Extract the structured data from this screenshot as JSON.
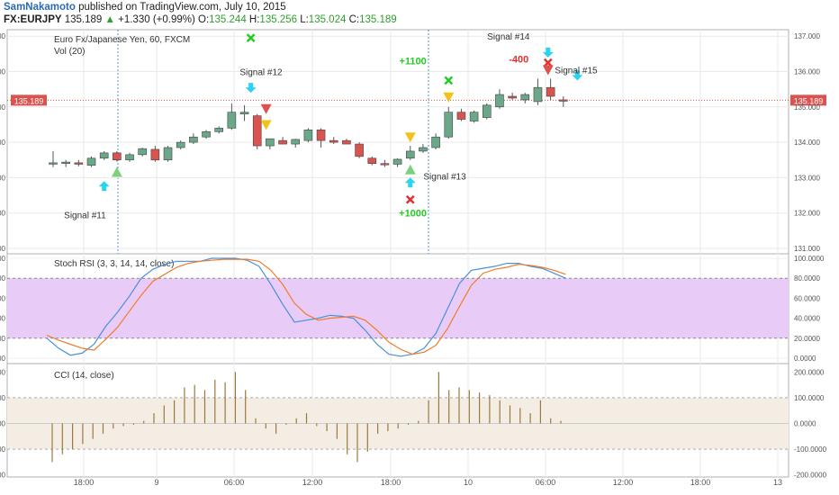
{
  "header": {
    "author": "SamNakamoto",
    "published_text": "published on TradingView.com, July 10, 2015",
    "symbol": "FX:EURJPY",
    "last": "135.189",
    "change_arrow": "▲",
    "change": "+1.330 (+0.99%)",
    "o_label": "O:",
    "o_val": "135.244",
    "h_label": "H:",
    "h_val": "135.256",
    "l_label": "L:",
    "l_val": "135.024",
    "c_label": "C:",
    "c_val": "135.189"
  },
  "colors": {
    "up": "#6aa889",
    "down": "#d9534f",
    "stoch_k": "#4a90d9",
    "stoch_d": "#f07c2a",
    "stoch_band": "#e8ccf7",
    "cci_band": "#f4ede4",
    "cci_bar": "#9a7a3a",
    "buy_arrow": "#2ad4f0",
    "buy_triangle": "#7ed07e",
    "sell_triangle": "#f2c21a",
    "sell_marker": "#e05050",
    "exit_x_red": "#e03030",
    "exit_x_green": "#22cc22",
    "profit_green": "#22cc22",
    "loss_red": "#e03030",
    "grid": "#e9e9e9",
    "price_line": "#d9534f",
    "session_line": "#4a90d9"
  },
  "chart_data": [
    {
      "type": "candlestick",
      "title": "Euro Fx/Japanese Yen, 60, FXCM",
      "volume_label": "Vol (20)",
      "ylim": [
        131.0,
        137.0
      ],
      "y_ticks": [
        "131.000",
        "132.000",
        "133.000",
        "134.000",
        "135.000",
        "136.000",
        "137.000"
      ],
      "last_price": "135.189",
      "candles": [
        {
          "o": 133.4,
          "h": 133.75,
          "l": 133.3,
          "c": 133.42
        },
        {
          "o": 133.4,
          "h": 133.5,
          "l": 133.3,
          "c": 133.44
        },
        {
          "o": 133.42,
          "h": 133.5,
          "l": 133.32,
          "c": 133.38
        },
        {
          "o": 133.35,
          "h": 133.6,
          "l": 133.3,
          "c": 133.55
        },
        {
          "o": 133.55,
          "h": 133.75,
          "l": 133.5,
          "c": 133.7
        },
        {
          "o": 133.7,
          "h": 133.75,
          "l": 133.45,
          "c": 133.5
        },
        {
          "o": 133.5,
          "h": 133.7,
          "l": 133.45,
          "c": 133.65
        },
        {
          "o": 133.65,
          "h": 133.85,
          "l": 133.6,
          "c": 133.82
        },
        {
          "o": 133.8,
          "h": 133.9,
          "l": 133.45,
          "c": 133.5
        },
        {
          "o": 133.5,
          "h": 133.9,
          "l": 133.45,
          "c": 133.85
        },
        {
          "o": 133.85,
          "h": 134.05,
          "l": 133.8,
          "c": 134.0
        },
        {
          "o": 134.0,
          "h": 134.25,
          "l": 133.95,
          "c": 134.15
        },
        {
          "o": 134.15,
          "h": 134.35,
          "l": 134.1,
          "c": 134.3
        },
        {
          "o": 134.3,
          "h": 134.45,
          "l": 134.25,
          "c": 134.4
        },
        {
          "o": 134.4,
          "h": 135.1,
          "l": 134.35,
          "c": 134.85
        },
        {
          "o": 134.8,
          "h": 135.05,
          "l": 134.6,
          "c": 134.85
        },
        {
          "o": 134.75,
          "h": 134.8,
          "l": 133.8,
          "c": 133.9
        },
        {
          "o": 133.9,
          "h": 134.1,
          "l": 133.8,
          "c": 134.1
        },
        {
          "o": 134.05,
          "h": 134.15,
          "l": 133.95,
          "c": 133.95
        },
        {
          "o": 133.95,
          "h": 134.1,
          "l": 133.85,
          "c": 134.08
        },
        {
          "o": 134.05,
          "h": 134.4,
          "l": 134.0,
          "c": 134.35
        },
        {
          "o": 134.35,
          "h": 134.4,
          "l": 133.85,
          "c": 134.05
        },
        {
          "o": 134.05,
          "h": 134.15,
          "l": 133.95,
          "c": 134.0
        },
        {
          "o": 134.05,
          "h": 134.1,
          "l": 133.95,
          "c": 133.95
        },
        {
          "o": 133.95,
          "h": 134.0,
          "l": 133.55,
          "c": 133.6
        },
        {
          "o": 133.55,
          "h": 133.6,
          "l": 133.35,
          "c": 133.4
        },
        {
          "o": 133.4,
          "h": 133.5,
          "l": 133.3,
          "c": 133.38
        },
        {
          "o": 133.38,
          "h": 133.55,
          "l": 133.3,
          "c": 133.52
        },
        {
          "o": 133.55,
          "h": 133.9,
          "l": 133.5,
          "c": 133.75
        },
        {
          "o": 133.75,
          "h": 133.95,
          "l": 133.7,
          "c": 133.85
        },
        {
          "o": 133.85,
          "h": 134.25,
          "l": 133.8,
          "c": 134.15
        },
        {
          "o": 134.15,
          "h": 135.0,
          "l": 134.1,
          "c": 134.85
        },
        {
          "o": 134.85,
          "h": 134.95,
          "l": 134.6,
          "c": 134.65
        },
        {
          "o": 134.6,
          "h": 134.9,
          "l": 134.55,
          "c": 134.85
        },
        {
          "o": 134.7,
          "h": 135.1,
          "l": 134.65,
          "c": 135.05
        },
        {
          "o": 135.0,
          "h": 135.5,
          "l": 134.95,
          "c": 135.35
        },
        {
          "o": 135.3,
          "h": 135.4,
          "l": 135.2,
          "c": 135.25
        },
        {
          "o": 135.2,
          "h": 135.4,
          "l": 135.1,
          "c": 135.35
        },
        {
          "o": 135.15,
          "h": 135.8,
          "l": 135.05,
          "c": 135.55
        },
        {
          "o": 135.55,
          "h": 135.8,
          "l": 135.2,
          "c": 135.3
        },
        {
          "o": 135.2,
          "h": 135.3,
          "l": 135.0,
          "c": 135.19
        }
      ],
      "annotations": [
        {
          "text": "Signal #11",
          "bar": 2.5,
          "y": 131.85
        },
        {
          "text": "Signal #12",
          "bar": 16.3,
          "y": 135.9
        },
        {
          "text": "Signal #13",
          "bar": 30.7,
          "y": 132.95
        },
        {
          "text": "Signal #14",
          "bar": 35.7,
          "y": 136.9
        },
        {
          "text": "Signal #15",
          "bar": 41.0,
          "y": 135.95
        },
        {
          "text": "+1100",
          "bar": 28.2,
          "y": 136.2,
          "kind": "profit"
        },
        {
          "text": "+1000",
          "bar": 28.2,
          "y": 131.9,
          "kind": "profit"
        },
        {
          "text": "-400",
          "bar": 36.5,
          "y": 136.25,
          "kind": "loss"
        }
      ],
      "markers": [
        {
          "bar": 4,
          "y": 132.75,
          "kind": "buy-arrow"
        },
        {
          "bar": 5,
          "y": 133.15,
          "kind": "buy-triangle"
        },
        {
          "bar": 15.5,
          "y": 136.95,
          "kind": "exit-x-green"
        },
        {
          "bar": 15.5,
          "y": 135.55,
          "kind": "sell-arrow"
        },
        {
          "bar": 16.7,
          "y": 134.95,
          "kind": "sell-triangle-red"
        },
        {
          "bar": 16.7,
          "y": 134.5,
          "kind": "sell-triangle"
        },
        {
          "bar": 28,
          "y": 134.15,
          "kind": "sell-triangle"
        },
        {
          "bar": 28,
          "y": 133.22,
          "kind": "buy-triangle"
        },
        {
          "bar": 28,
          "y": 132.85,
          "kind": "buy-arrow"
        },
        {
          "bar": 28,
          "y": 132.38,
          "kind": "exit-x-red"
        },
        {
          "bar": 31,
          "y": 135.75,
          "kind": "exit-x-green"
        },
        {
          "bar": 31,
          "y": 135.28,
          "kind": "sell-triangle"
        },
        {
          "bar": 38.8,
          "y": 136.55,
          "kind": "sell-arrow"
        },
        {
          "bar": 38.8,
          "y": 136.25,
          "kind": "exit-x-red"
        },
        {
          "bar": 38.8,
          "y": 136.05,
          "kind": "sell-triangle-red"
        },
        {
          "bar": 41.1,
          "y": 135.9,
          "kind": "sell-arrow"
        }
      ]
    },
    {
      "type": "line",
      "title": "Stoch RSI (3, 3, 14, 14, close)",
      "ylim": [
        0,
        100
      ],
      "y_ticks": [
        "0.0000",
        "20.0000",
        "40.0000",
        "60.0000",
        "80.0000",
        "100.0000"
      ],
      "band": [
        20,
        80
      ],
      "series": [
        {
          "key": "k",
          "values": [
            20,
            10,
            3,
            5,
            14,
            32,
            46,
            62,
            80,
            89,
            94,
            97,
            97,
            97,
            100,
            100,
            100,
            98,
            92,
            74,
            54,
            36,
            38,
            40,
            43,
            42,
            40,
            28,
            14,
            4,
            2,
            4,
            10,
            25,
            50,
            75,
            88,
            90,
            92,
            95,
            95,
            92,
            90,
            85,
            80
          ]
        },
        {
          "key": "d",
          "values": [
            23,
            18,
            14,
            10,
            8,
            19,
            31,
            47,
            63,
            77,
            84,
            91,
            95,
            97,
            98,
            99,
            99,
            99,
            97,
            88,
            74,
            55,
            44,
            38,
            40,
            41,
            42,
            38,
            28,
            16,
            9,
            4,
            6,
            13,
            30,
            52,
            73,
            85,
            89,
            91,
            94,
            93,
            91,
            88,
            84
          ]
        }
      ]
    },
    {
      "type": "bar",
      "title": "CCI (14, close)",
      "ylim": [
        -200,
        200
      ],
      "y_ticks": [
        "-200.0000",
        "-100.0000",
        "0.0000",
        "100.0000",
        "200.0000"
      ],
      "band": [
        -100,
        100
      ],
      "values": [
        -150,
        -120,
        -100,
        -80,
        -60,
        -40,
        -20,
        -10,
        -5,
        10,
        40,
        70,
        90,
        140,
        150,
        130,
        170,
        160,
        200,
        130,
        20,
        -20,
        -40,
        -5,
        20,
        40,
        -10,
        -30,
        -60,
        -120,
        -150,
        -110,
        -40,
        -30,
        -20,
        -5,
        10,
        90,
        200,
        130,
        140,
        130,
        120,
        110,
        90,
        70,
        60,
        40,
        90,
        20,
        10
      ]
    }
  ],
  "time_axis": {
    "labels": [
      "18:00",
      "9",
      "06:00",
      "12:00",
      "18:00",
      "10",
      "06:00",
      "12:00",
      "18:00",
      "13"
    ]
  }
}
